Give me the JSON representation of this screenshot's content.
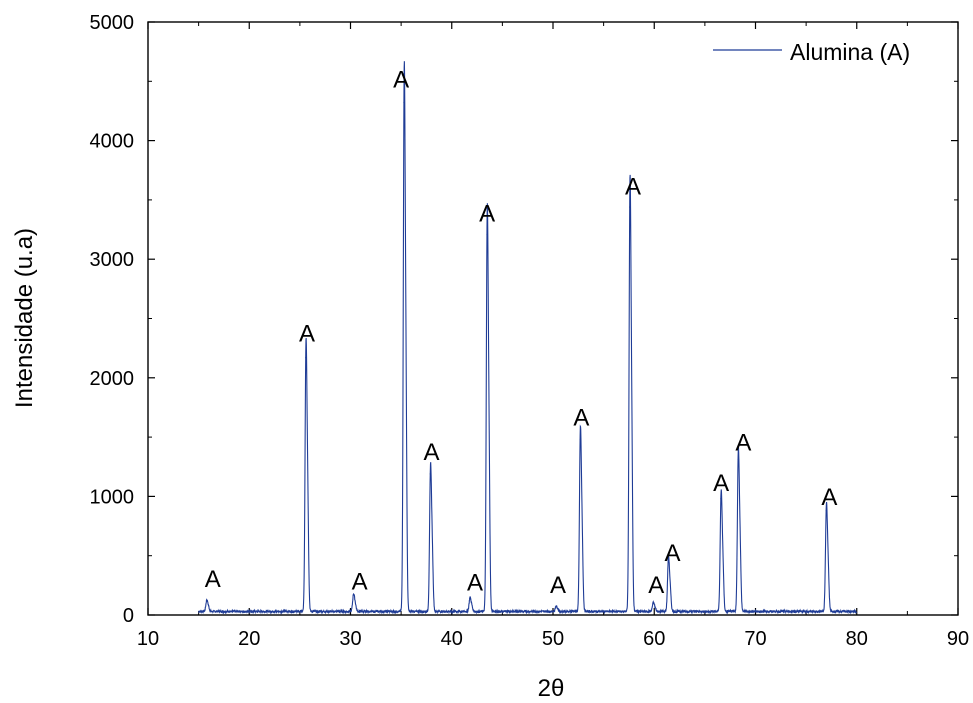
{
  "chart_data": {
    "type": "line",
    "title": "",
    "xlabel": "2θ",
    "ylabel": "Intensidade (u.a)",
    "xlim": [
      10,
      90
    ],
    "ylim": [
      0,
      5000
    ],
    "xticks": [
      10,
      20,
      30,
      40,
      50,
      60,
      70,
      80,
      90
    ],
    "yticks": [
      0,
      1000,
      2000,
      3000,
      4000,
      5000
    ],
    "x_tick_labels": [
      "10",
      "20",
      "30",
      "40",
      "50",
      "60",
      "70",
      "80",
      "90"
    ],
    "y_tick_labels": [
      "0",
      "1000",
      "2000",
      "3000",
      "4000",
      "5000"
    ],
    "grid": false,
    "legend": {
      "position": "top-right",
      "entries": [
        "Alumina (A)"
      ]
    },
    "series": [
      {
        "name": "Alumina (A)",
        "color": "#1f3c96",
        "x_range": [
          15,
          80
        ],
        "baseline": 30,
        "peaks": [
          {
            "x": 15.8,
            "y": 120
          },
          {
            "x": 25.6,
            "y": 2170
          },
          {
            "x": 30.3,
            "y": 170
          },
          {
            "x": 35.3,
            "y": 4320
          },
          {
            "x": 37.9,
            "y": 1190
          },
          {
            "x": 41.8,
            "y": 140
          },
          {
            "x": 43.5,
            "y": 3210
          },
          {
            "x": 50.3,
            "y": 70
          },
          {
            "x": 52.7,
            "y": 1480
          },
          {
            "x": 57.6,
            "y": 3440
          },
          {
            "x": 59.9,
            "y": 100
          },
          {
            "x": 61.4,
            "y": 460
          },
          {
            "x": 66.6,
            "y": 980
          },
          {
            "x": 68.3,
            "y": 1310
          },
          {
            "x": 77.0,
            "y": 880
          }
        ]
      }
    ],
    "annotations": [
      {
        "text": "A",
        "x": 16.4,
        "y": 220
      },
      {
        "text": "A",
        "x": 25.7,
        "y": 2290
      },
      {
        "text": "A",
        "x": 30.9,
        "y": 200
      },
      {
        "text": "A",
        "x": 35.0,
        "y": 4430
      },
      {
        "text": "A",
        "x": 38.0,
        "y": 1290
      },
      {
        "text": "A",
        "x": 42.3,
        "y": 190
      },
      {
        "text": "A",
        "x": 43.5,
        "y": 3300
      },
      {
        "text": "A",
        "x": 50.5,
        "y": 170
      },
      {
        "text": "A",
        "x": 52.8,
        "y": 1580
      },
      {
        "text": "A",
        "x": 57.9,
        "y": 3530
      },
      {
        "text": "A",
        "x": 60.2,
        "y": 170
      },
      {
        "text": "A",
        "x": 61.8,
        "y": 440
      },
      {
        "text": "A",
        "x": 66.6,
        "y": 1030
      },
      {
        "text": "A",
        "x": 68.8,
        "y": 1370
      },
      {
        "text": "A",
        "x": 77.3,
        "y": 910
      }
    ]
  }
}
